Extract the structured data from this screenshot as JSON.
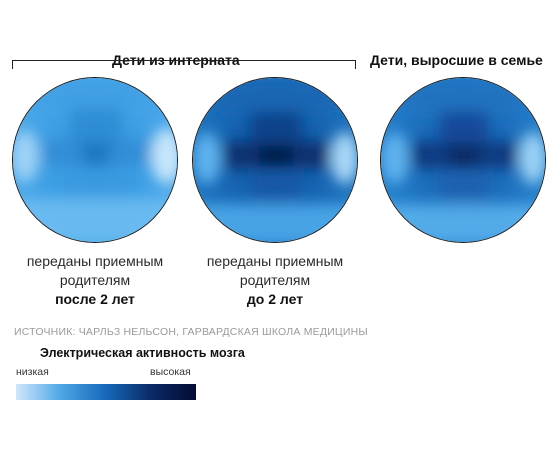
{
  "groups": {
    "orphanage": "Дети из интерната",
    "family": "Дети, выросшие в семье"
  },
  "captions": [
    {
      "line1": "переданы приемным",
      "line2": "родителям",
      "emph": "после 2 лет"
    },
    {
      "line1": "переданы приемным",
      "line2": "родителям",
      "emph": "до 2 лет"
    }
  ],
  "brains": [
    {
      "group": "orphanage",
      "activity": "low"
    },
    {
      "group": "orphanage",
      "activity": "high"
    },
    {
      "group": "family",
      "activity": "high"
    }
  ],
  "source": "ИСТОЧНИК: ЧАРЛЬЗ НЕЛЬСОН, ГАРВАРДСКАЯ ШКОЛА МЕДИЦИНЫ",
  "legend": {
    "title": "Электрическая активность мозга",
    "low": "низкая",
    "high": "высокая",
    "colors": [
      "#cfe8fb",
      "#4ea7e6",
      "#1668b8",
      "#0a2a66",
      "#050b33"
    ]
  }
}
